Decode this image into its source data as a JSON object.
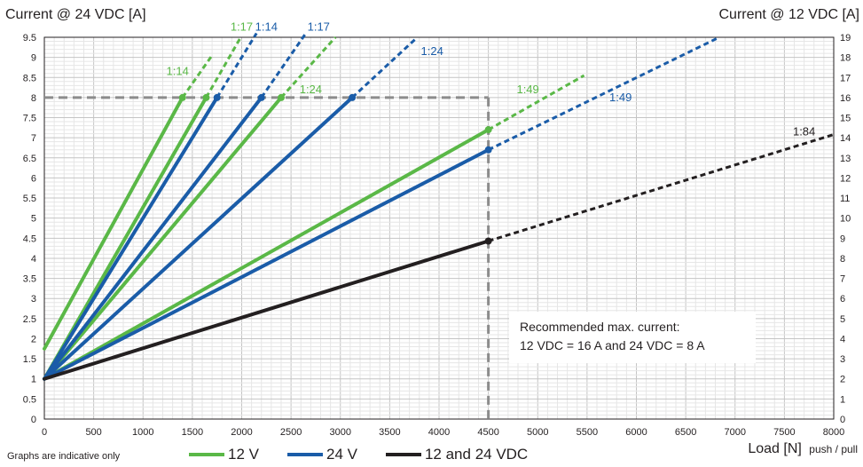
{
  "header": {
    "y_left_title": "Current @ 24 VDC [A]",
    "y_right_title": "Current @ 12 VDC [A]"
  },
  "x_axis": {
    "title": "Load [N]",
    "subtitle": "push / pull"
  },
  "footnote": "Graphs are indicative only",
  "note": {
    "line1": "Recommended max. current:",
    "line2": "12 VDC = 16 A and 24 VDC = 8 A"
  },
  "legend": [
    {
      "label": "12 V",
      "color": "#5ab847"
    },
    {
      "label": "24 V",
      "color": "#1a5ca8"
    },
    {
      "label": "12 and 24 VDC",
      "color": "#231f20"
    }
  ],
  "chart_data": {
    "type": "line",
    "xlim": [
      0,
      8000
    ],
    "ylim_left": [
      0,
      9.5
    ],
    "ylim_right": [
      0,
      19
    ],
    "grid": true,
    "x_ticks": [
      "0",
      "500",
      "1000",
      "1500",
      "2000",
      "2500",
      "3000",
      "3500",
      "4000",
      "4500",
      "5000",
      "5500",
      "6000",
      "6500",
      "7000",
      "7500",
      "8000"
    ],
    "y_left_ticks": [
      "0",
      "0.5",
      "1",
      "1.5",
      "2",
      "2.5",
      "3",
      "3.5",
      "4",
      "4.5",
      "5",
      "5.5",
      "6",
      "6.5",
      "7",
      "7.5",
      "8",
      "8.5",
      "9",
      "9.5"
    ],
    "y_right_ticks": [
      "0",
      "1",
      "2",
      "3",
      "4",
      "5",
      "6",
      "7",
      "8",
      "9",
      "10",
      "11",
      "12",
      "13",
      "14",
      "15",
      "16",
      "17",
      "18",
      "19"
    ],
    "limit_line": {
      "y_left": 8,
      "x": 4500
    },
    "series": [
      {
        "name": "1:14",
        "group": "12 V",
        "start": [
          0,
          1.75
        ],
        "end": [
          1400,
          8
        ],
        "dashed_to": [
          1700,
          9.05
        ],
        "label": "1:14",
        "label_at": [
          1350,
          8.65
        ]
      },
      {
        "name": "1:17",
        "group": "12 V",
        "start": [
          0,
          1
        ],
        "end": [
          1640,
          8
        ],
        "dashed_to": [
          1990,
          9.5
        ],
        "label": "1:17",
        "label_at": [
          2000,
          9.75
        ]
      },
      {
        "name": "1:24",
        "group": "12 V",
        "start": [
          0,
          1
        ],
        "end": [
          2400,
          8
        ],
        "dashed_to": [
          2950,
          9.5
        ],
        "label": "1:24",
        "label_at": [
          2700,
          8.2
        ]
      },
      {
        "name": "1:49",
        "group": "12 V",
        "start": [
          0,
          1
        ],
        "end": [
          4500,
          7.2
        ],
        "dashed_to": [
          5470,
          8.55
        ],
        "label": "1:49",
        "label_at": [
          4900,
          8.2
        ]
      },
      {
        "name": "1:14",
        "group": "24 V",
        "start": [
          0,
          1
        ],
        "end": [
          1750,
          8
        ],
        "dashed_to": [
          2150,
          9.6
        ],
        "label": "1:14",
        "label_at": [
          2250,
          9.75
        ]
      },
      {
        "name": "1:17",
        "group": "24 V",
        "start": [
          0,
          1
        ],
        "end": [
          2200,
          8
        ],
        "dashed_to": [
          2650,
          9.6
        ],
        "label": "1:17",
        "label_at": [
          2780,
          9.75
        ]
      },
      {
        "name": "1:24",
        "group": "24 V",
        "start": [
          0,
          1
        ],
        "end": [
          3120,
          8
        ],
        "dashed_to": [
          3780,
          9.5
        ],
        "label": "1:24",
        "label_at": [
          3930,
          9.15
        ]
      },
      {
        "name": "1:49",
        "group": "24 V",
        "start": [
          0,
          1
        ],
        "end": [
          4500,
          6.7
        ],
        "dashed_to": [
          6840,
          9.5
        ],
        "label": "1:49",
        "label_at": [
          5840,
          8.0
        ]
      },
      {
        "name": "1:84",
        "group": "12 and 24 VDC",
        "start": [
          0,
          1
        ],
        "end": [
          4500,
          4.43
        ],
        "dashed_to": [
          8000,
          7.08
        ],
        "label": "1:84",
        "label_at": [
          7700,
          7.15
        ]
      }
    ]
  }
}
